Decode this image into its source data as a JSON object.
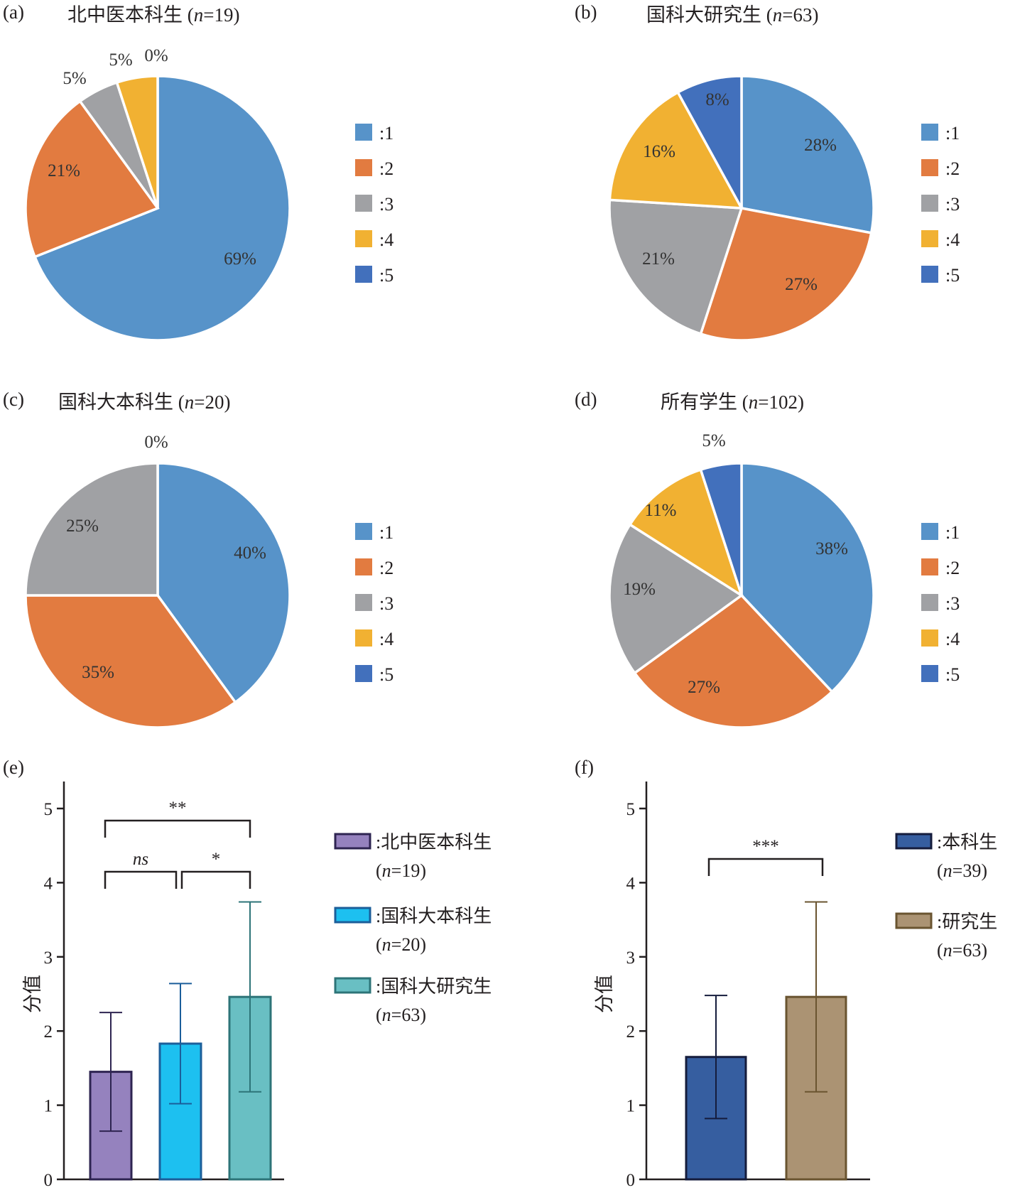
{
  "legend_labels": [
    ":1",
    ":2",
    ":3",
    ":4",
    ":5"
  ],
  "category_colors": [
    "#5793c9",
    "#e27b40",
    "#a0a1a4",
    "#f1b132",
    "#4270bc"
  ],
  "chart_data": [
    {
      "panel": "(a)",
      "type": "pie",
      "title": "北中医本科生",
      "n_label": "n",
      "n_value": "=19",
      "categories": [
        "1",
        "2",
        "3",
        "4",
        "5"
      ],
      "values": [
        69,
        21,
        5,
        5,
        0
      ],
      "data_labels": [
        "69%",
        "21%",
        "5%",
        "5%",
        "0%"
      ]
    },
    {
      "panel": "(b)",
      "type": "pie",
      "title": "国科大研究生",
      "n_label": "n",
      "n_value": "=63",
      "categories": [
        "1",
        "2",
        "3",
        "4",
        "5"
      ],
      "values": [
        28,
        27,
        21,
        16,
        8
      ],
      "data_labels": [
        "28%",
        "27%",
        "21%",
        "16%",
        "8%"
      ]
    },
    {
      "panel": "(c)",
      "type": "pie",
      "title": "国科大本科生",
      "n_label": "n",
      "n_value": "=20",
      "categories": [
        "1",
        "2",
        "3",
        "4",
        "5"
      ],
      "values": [
        40,
        35,
        25,
        0,
        0
      ],
      "data_labels": [
        "40%",
        "35%",
        "25%",
        "0%",
        ""
      ]
    },
    {
      "panel": "(d)",
      "type": "pie",
      "title": "所有学生",
      "n_label": "n",
      "n_value": "=102",
      "categories": [
        "1",
        "2",
        "3",
        "4",
        "5"
      ],
      "values": [
        38,
        27,
        19,
        11,
        5
      ],
      "data_labels": [
        "38%",
        "27%",
        "19%",
        "11%",
        "5%"
      ]
    },
    {
      "panel": "(e)",
      "type": "bar",
      "ylabel": "分值",
      "ylim": [
        0,
        5
      ],
      "yticks": [
        0,
        1,
        2,
        3,
        4,
        5
      ],
      "series": [
        {
          "name": ":北中医本科生",
          "n_label": "n",
          "n_value": "=19",
          "mean": 1.45,
          "sd": 0.8,
          "color": "#9582be"
        },
        {
          "name": ":国科大本科生",
          "n_label": "n",
          "n_value": "=20",
          "mean": 1.83,
          "sd": 0.81,
          "color": "#1dc0f0"
        },
        {
          "name": ":国科大研究生",
          "n_label": "n",
          "n_value": "=63",
          "mean": 2.46,
          "sd": 1.28,
          "color": "#69bfc3"
        }
      ],
      "significance": [
        {
          "from": 0,
          "to": 2,
          "label": "**"
        },
        {
          "from": 0,
          "to": 1,
          "label": "ns"
        },
        {
          "from": 1,
          "to": 2,
          "label": "*"
        }
      ]
    },
    {
      "panel": "(f)",
      "type": "bar",
      "ylabel": "分值",
      "ylim": [
        0,
        5
      ],
      "yticks": [
        0,
        1,
        2,
        3,
        4,
        5
      ],
      "series": [
        {
          "name": ":本科生",
          "n_label": "n",
          "n_value": "=39",
          "mean": 1.65,
          "sd": 0.83,
          "color": "#365ea0"
        },
        {
          "name": ":研究生",
          "n_label": "n",
          "n_value": "=63",
          "mean": 2.46,
          "sd": 1.28,
          "color": "#ab9373"
        }
      ],
      "significance": [
        {
          "from": 0,
          "to": 1,
          "label": "***"
        }
      ]
    }
  ]
}
